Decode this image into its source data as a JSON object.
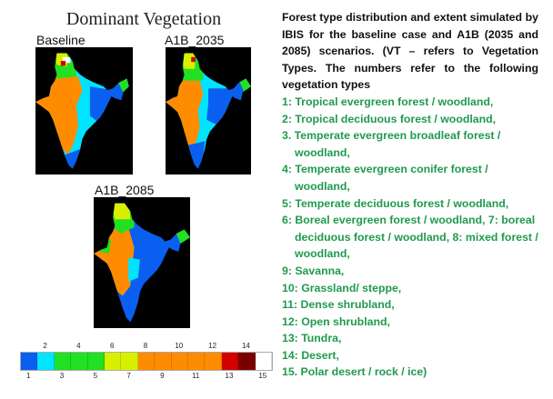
{
  "figure": {
    "title": "Dominant Vegetation",
    "maps": [
      {
        "label": "Baseline"
      },
      {
        "label": "A1B_2035"
      },
      {
        "label": "A1B_2085"
      }
    ],
    "colorbar": {
      "classes": [
        1,
        2,
        3,
        4,
        5,
        6,
        7,
        8,
        9,
        10,
        11,
        12,
        13,
        14,
        15
      ],
      "colors": [
        "#0a5ff0",
        "#00e4ff",
        "#22e022",
        "#22e022",
        "#22e022",
        "#d8f000",
        "#d8f000",
        "#ff8c00",
        "#ff8c00",
        "#ff8c00",
        "#ff8c00",
        "#ff8c00",
        "#d40000",
        "#7a0000",
        "#ffffff"
      ],
      "top_ticks": [
        "2",
        "4",
        "6",
        "8",
        "10",
        "12",
        "14"
      ],
      "bottom_ticks": [
        "1",
        "3",
        "5",
        "7",
        "9",
        "11",
        "13",
        "15"
      ]
    }
  },
  "caption": {
    "intro": "Forest type distribution and extent simulated by IBIS for the baseline case and A1B (2035 and 2085) scenarios. (VT – refers to Vegetation Types. The numbers refer to the following vegetation types",
    "items": [
      "1: Tropical evergreen forest / woodland,",
      "2: Tropical deciduous forest / woodland,",
      "3. Temperate evergreen broadleaf forest / woodland,",
      "4: Temperate evergreen conifer forest / woodland,",
      "5: Temperate deciduous forest / woodland,",
      "6: Boreal evergreen forest / woodland, 7: boreal deciduous forest / woodland, 8: mixed forest / woodland,",
      "9: Savanna,",
      "10: Grassland/ steppe,",
      "11: Dense shrubland,",
      "12: Open shrubland,",
      "13: Tundra,",
      "14: Desert,",
      "15. Polar desert / rock / ice)"
    ]
  }
}
